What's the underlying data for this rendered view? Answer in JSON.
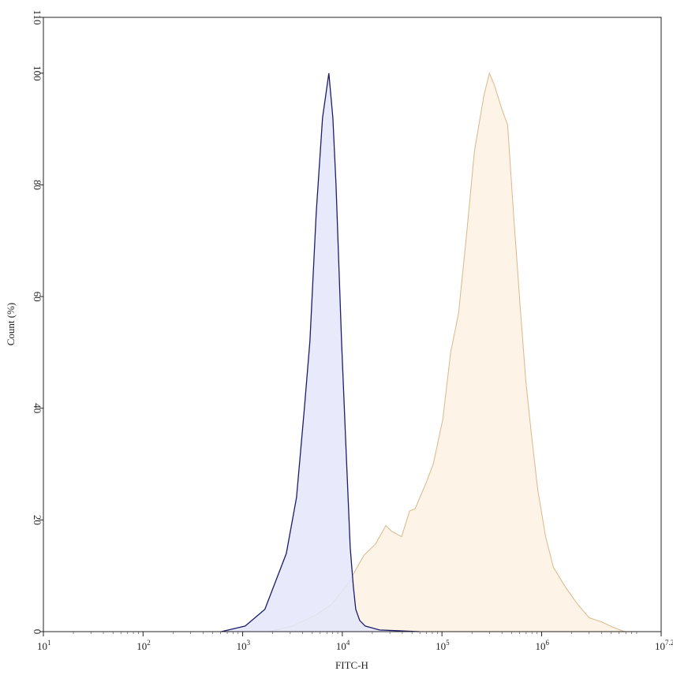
{
  "chart_data": {
    "type": "area",
    "title": "",
    "xlabel": "FITC-H",
    "ylabel": "Count (%)",
    "xscale": "log",
    "xlim": [
      10,
      15848932
    ],
    "ylim": [
      0,
      110
    ],
    "grid": false,
    "legend": "none",
    "x_ticks": [
      {
        "base": "10",
        "exp": "1",
        "value": 10
      },
      {
        "base": "10",
        "exp": "2",
        "value": 100
      },
      {
        "base": "10",
        "exp": "3",
        "value": 1000
      },
      {
        "base": "10",
        "exp": "4",
        "value": 10000
      },
      {
        "base": "10",
        "exp": "5",
        "value": 100000
      },
      {
        "base": "10",
        "exp": "6",
        "value": 1000000
      },
      {
        "base": "10",
        "exp": "7.2",
        "value": 15848932
      }
    ],
    "y_ticks": [
      "0",
      "20",
      "40",
      "60",
      "80",
      "100",
      "110"
    ],
    "series": [
      {
        "color": "#fdf3e6",
        "stroke": "#d8b88c",
        "x": [
          1830,
          3160,
          5470,
          7890,
          11380,
          16380,
          21540,
          27350,
          31050,
          39370,
          47300,
          53700,
          70630,
          81800,
          101900,
          122300,
          146800,
          176300,
          211600,
          263400,
          299400,
          334100,
          401100,
          456000,
          527200,
          610600,
          693500,
          788600,
          912000,
          1096000,
          1315000,
          1730000,
          2276000,
          2994000,
          3937000,
          5178000,
          6808000
        ],
        "y": [
          0,
          1,
          3,
          5,
          8.6,
          13.6,
          15.7,
          19,
          18,
          17,
          21.6,
          22,
          27,
          30,
          38,
          50,
          57,
          71,
          86,
          96,
          100,
          98,
          93.5,
          90.7,
          74,
          58,
          45,
          35.5,
          25.6,
          17,
          11.5,
          8,
          5,
          2.5,
          1.8,
          0.8,
          0
        ]
      },
      {
        "color": "#e4e6fa",
        "stroke": "#1c1c6b",
        "x": [
          610,
          1060,
          1670,
          2740,
          3470,
          4160,
          4730,
          5470,
          6330,
          7330,
          8040,
          8650,
          9820,
          10770,
          12000,
          12910,
          13640,
          14950,
          16990,
          23600,
          58900
        ],
        "y": [
          0,
          1,
          4,
          14,
          24,
          40,
          52,
          75,
          92,
          100,
          92,
          80,
          52,
          35,
          15,
          8,
          4,
          2,
          1,
          0.3,
          0
        ]
      }
    ]
  }
}
